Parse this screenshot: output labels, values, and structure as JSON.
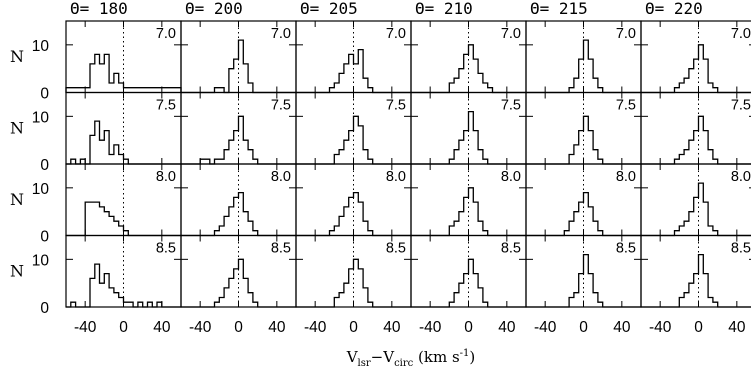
{
  "chart_data": {
    "type": "bar",
    "column_titles": [
      "Θ= 180",
      "Θ= 200",
      "Θ= 205",
      "Θ= 210",
      "Θ= 215",
      "Θ= 220"
    ],
    "row_labels": [
      "7.0",
      "7.5",
      "8.0",
      "8.5"
    ],
    "ylabel": "N",
    "xlabel_main": "V",
    "xlabel_sub1": "lsr",
    "xlabel_mid": "−V",
    "xlabel_sub2": "circ",
    "xlabel_unit": " (km s",
    "xlabel_exp": "-1",
    "xlabel_close": ")",
    "x_tick_labels": [
      "-40",
      "0",
      "40"
    ],
    "x_ticks": [
      -40,
      0,
      40
    ],
    "y_tick_labels": [
      "0",
      "10"
    ],
    "y_ticks": [
      0,
      10
    ],
    "xlim": [
      -60,
      60
    ],
    "ylim": [
      0,
      15
    ],
    "bin_width": 5,
    "bin_starts": [
      -60,
      -55,
      -50,
      -45,
      -40,
      -35,
      -30,
      -25,
      -20,
      -15,
      -10,
      -5,
      0,
      5,
      10,
      15,
      20,
      25,
      30,
      35,
      40,
      45,
      50,
      55
    ],
    "panels": [
      [
        [
          1,
          1,
          1,
          1,
          1,
          6,
          8,
          6,
          8,
          2,
          4,
          2,
          1,
          1,
          1,
          1,
          1,
          1,
          1,
          1,
          1,
          1,
          1,
          1
        ],
        [
          0,
          0,
          0,
          0,
          0,
          0,
          0,
          1,
          1,
          0,
          5,
          7,
          11,
          6,
          2,
          0,
          0,
          0,
          0,
          0,
          0,
          0,
          0,
          0
        ],
        [
          0,
          0,
          0,
          0,
          0,
          0,
          0,
          1,
          2,
          4,
          6,
          8,
          6,
          9,
          3,
          1,
          0,
          0,
          0,
          0,
          0,
          0,
          0,
          0
        ],
        [
          0,
          0,
          0,
          0,
          0,
          0,
          0,
          0,
          2,
          3,
          5,
          8,
          10,
          7,
          4,
          2,
          1,
          0,
          0,
          0,
          0,
          0,
          0,
          0
        ],
        [
          0,
          0,
          0,
          0,
          0,
          0,
          0,
          0,
          0,
          1,
          3,
          7,
          11,
          7,
          3,
          1,
          0,
          0,
          0,
          0,
          0,
          0,
          0,
          0
        ],
        [
          0,
          0,
          0,
          0,
          0,
          0,
          0,
          1,
          2,
          3,
          5,
          7,
          10,
          7,
          2,
          1,
          0,
          0,
          0,
          0,
          0,
          0,
          0,
          0
        ]
      ],
      [
        [
          0,
          1,
          0,
          1,
          0,
          6,
          9,
          5,
          7,
          2,
          4,
          2,
          1,
          0,
          0,
          0,
          0,
          0,
          0,
          0,
          0,
          0,
          0,
          0
        ],
        [
          0,
          0,
          0,
          0,
          1,
          1,
          0,
          1,
          1,
          3,
          5,
          7,
          10,
          5,
          3,
          1,
          0,
          0,
          0,
          0,
          0,
          0,
          0,
          0
        ],
        [
          0,
          0,
          0,
          0,
          0,
          0,
          0,
          0,
          2,
          3,
          5,
          7,
          10,
          8,
          3,
          1,
          0,
          0,
          0,
          0,
          0,
          0,
          0,
          0
        ],
        [
          0,
          0,
          0,
          0,
          0,
          0,
          0,
          0,
          1,
          3,
          5,
          7,
          11,
          7,
          3,
          1,
          0,
          0,
          0,
          0,
          0,
          0,
          0,
          0
        ],
        [
          0,
          0,
          0,
          0,
          0,
          0,
          0,
          0,
          0,
          2,
          4,
          7,
          10,
          7,
          3,
          1,
          0,
          0,
          0,
          0,
          0,
          0,
          0,
          0
        ],
        [
          0,
          0,
          0,
          0,
          0,
          0,
          0,
          1,
          2,
          3,
          5,
          7,
          10,
          7,
          3,
          1,
          0,
          0,
          0,
          0,
          0,
          0,
          0,
          0
        ]
      ],
      [
        [
          0,
          0,
          0,
          0,
          7,
          7,
          7,
          6,
          5,
          4,
          3,
          2,
          1,
          0,
          0,
          0,
          0,
          0,
          0,
          0,
          0,
          0,
          0,
          0
        ],
        [
          0,
          0,
          0,
          0,
          0,
          0,
          0,
          1,
          2,
          4,
          6,
          8,
          9,
          5,
          3,
          1,
          0,
          0,
          0,
          0,
          0,
          0,
          0,
          0
        ],
        [
          0,
          0,
          0,
          0,
          0,
          0,
          0,
          1,
          2,
          4,
          6,
          8,
          9,
          7,
          3,
          1,
          0,
          0,
          0,
          0,
          0,
          0,
          0,
          0
        ],
        [
          0,
          0,
          0,
          0,
          0,
          0,
          0,
          0,
          2,
          3,
          5,
          8,
          10,
          7,
          3,
          1,
          0,
          0,
          0,
          0,
          0,
          0,
          0,
          0
        ],
        [
          0,
          0,
          0,
          0,
          0,
          0,
          0,
          0,
          1,
          3,
          5,
          7,
          9,
          6,
          3,
          1,
          0,
          0,
          0,
          0,
          0,
          0,
          0,
          0
        ],
        [
          0,
          0,
          0,
          0,
          0,
          0,
          0,
          1,
          2,
          3,
          5,
          8,
          11,
          7,
          2,
          1,
          0,
          0,
          0,
          0,
          0,
          0,
          0,
          0
        ]
      ],
      [
        [
          0,
          1,
          0,
          0,
          0,
          6,
          9,
          5,
          7,
          4,
          3,
          2,
          1,
          1,
          0,
          1,
          0,
          1,
          0,
          1,
          0,
          0,
          0,
          0
        ],
        [
          0,
          0,
          0,
          0,
          0,
          0,
          0,
          1,
          2,
          4,
          6,
          8,
          10,
          6,
          3,
          1,
          0,
          0,
          0,
          0,
          0,
          0,
          0,
          0
        ],
        [
          0,
          0,
          0,
          0,
          0,
          0,
          0,
          0,
          2,
          3,
          5,
          8,
          10,
          8,
          4,
          1,
          0,
          0,
          0,
          0,
          0,
          0,
          0,
          0
        ],
        [
          0,
          0,
          0,
          0,
          0,
          0,
          0,
          0,
          1,
          3,
          5,
          7,
          10,
          7,
          4,
          1,
          0,
          0,
          0,
          0,
          0,
          0,
          0,
          0
        ],
        [
          0,
          0,
          0,
          0,
          0,
          0,
          0,
          0,
          0,
          2,
          3,
          7,
          11,
          7,
          3,
          1,
          0,
          0,
          0,
          0,
          0,
          0,
          0,
          0
        ],
        [
          0,
          0,
          0,
          0,
          0,
          0,
          0,
          0,
          2,
          3,
          5,
          7,
          11,
          7,
          2,
          1,
          0,
          0,
          0,
          0,
          0,
          0,
          0,
          0
        ]
      ]
    ],
    "reference_line_x": 0,
    "grid": false,
    "colors": {
      "line": "#000000",
      "background": "#ffffff"
    }
  }
}
